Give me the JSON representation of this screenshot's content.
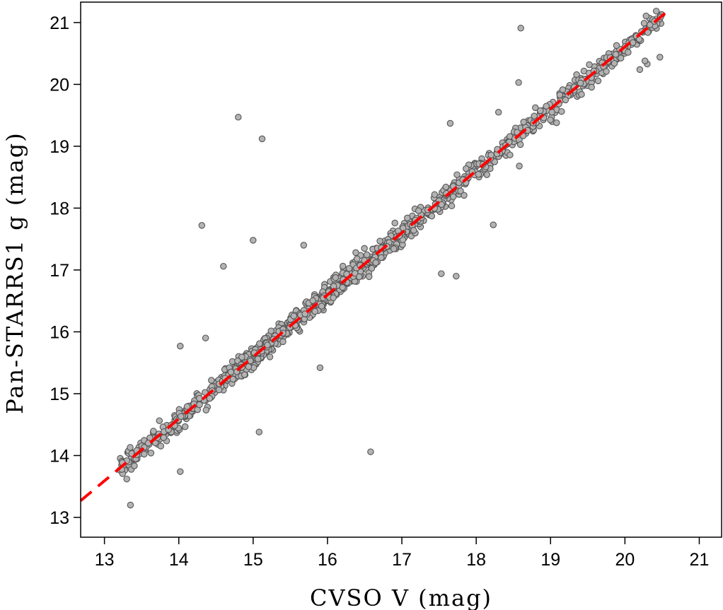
{
  "chart_data": {
    "type": "scatter",
    "title": "",
    "xlabel": "CVSO V (mag)",
    "ylabel": "Pan-STARRS1 g (mag)",
    "xlim": [
      12.68,
      21.3
    ],
    "ylim": [
      12.68,
      21.33
    ],
    "xticks": [
      13,
      14,
      15,
      16,
      17,
      18,
      19,
      20,
      21
    ],
    "yticks": [
      13,
      14,
      15,
      16,
      17,
      18,
      19,
      20,
      21
    ],
    "grid": false,
    "legend": "none",
    "marker_fill": "#b3b3b3",
    "marker_edge": "#555555",
    "fit_line": {
      "style": "dashed",
      "color": "#ff0000",
      "x": [
        12.68,
        20.6
      ],
      "y": [
        13.27,
        21.21
      ]
    },
    "outliers": [
      {
        "x": 14.8,
        "y": 19.47
      },
      {
        "x": 15.12,
        "y": 19.12
      },
      {
        "x": 14.31,
        "y": 17.72
      },
      {
        "x": 15.0,
        "y": 17.48
      },
      {
        "x": 14.6,
        "y": 17.06
      },
      {
        "x": 15.68,
        "y": 17.4
      },
      {
        "x": 16.58,
        "y": 14.06
      },
      {
        "x": 18.6,
        "y": 20.91
      },
      {
        "x": 18.23,
        "y": 17.73
      },
      {
        "x": 17.53,
        "y": 16.94
      },
      {
        "x": 17.73,
        "y": 16.9
      },
      {
        "x": 17.65,
        "y": 19.37
      },
      {
        "x": 20.3,
        "y": 20.33
      },
      {
        "x": 20.2,
        "y": 20.24
      },
      {
        "x": 20.47,
        "y": 20.44
      },
      {
        "x": 14.02,
        "y": 15.77
      },
      {
        "x": 15.08,
        "y": 14.38
      },
      {
        "x": 13.35,
        "y": 13.2
      },
      {
        "x": 14.02,
        "y": 13.74
      },
      {
        "x": 14.36,
        "y": 15.9
      },
      {
        "x": 15.9,
        "y": 15.42
      },
      {
        "x": 18.58,
        "y": 18.68
      },
      {
        "x": 19.08,
        "y": 19.38
      },
      {
        "x": 18.3,
        "y": 19.55
      },
      {
        "x": 18.57,
        "y": 20.03
      },
      {
        "x": 19.75,
        "y": 20.21
      },
      {
        "x": 16.38,
        "y": 17.28
      },
      {
        "x": 20.27,
        "y": 20.38
      },
      {
        "x": 13.3,
        "y": 13.62
      }
    ],
    "main_band": {
      "x_range": [
        13.2,
        20.5
      ],
      "y_mean": "y = 1.002 * x + 0.565",
      "typical_scatter": 0.14,
      "point_count": 1150
    }
  }
}
